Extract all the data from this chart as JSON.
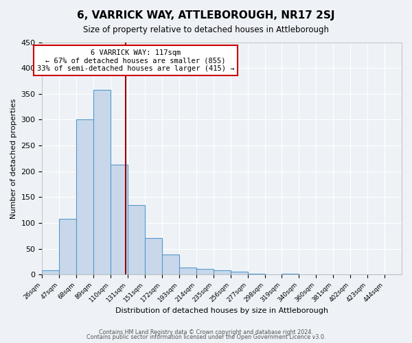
{
  "title": "6, VARRICK WAY, ATTLEBOROUGH, NR17 2SJ",
  "subtitle": "Size of property relative to detached houses in Attleborough",
  "xlabel": "Distribution of detached houses by size in Attleborough",
  "ylabel": "Number of detached properties",
  "bar_values": [
    8,
    108,
    300,
    358,
    213,
    135,
    70,
    39,
    14,
    11,
    8,
    5,
    2,
    0,
    2,
    0,
    0,
    0,
    0,
    0,
    0
  ],
  "bar_labels": [
    "26sqm",
    "47sqm",
    "68sqm",
    "89sqm",
    "110sqm",
    "131sqm",
    "151sqm",
    "172sqm",
    "193sqm",
    "214sqm",
    "235sqm",
    "256sqm",
    "277sqm",
    "298sqm",
    "319sqm",
    "340sqm",
    "360sqm",
    "381sqm",
    "402sqm",
    "423sqm",
    "444sqm"
  ],
  "bin_edges": [
    15,
    36,
    57,
    78,
    99,
    120,
    141,
    162,
    183,
    204,
    225,
    246,
    267,
    288,
    309,
    330,
    351,
    372,
    393,
    414,
    435,
    456
  ],
  "bar_color": "#c8d8ea",
  "bar_edge_color": "#5599cc",
  "vline_x": 117,
  "vline_color": "#990000",
  "annotation_text": "6 VARRICK WAY: 117sqm\n← 67% of detached houses are smaller (855)\n33% of semi-detached houses are larger (415) →",
  "annotation_box_color": "#ffffff",
  "annotation_box_edge": "#cc0000",
  "ylim": [
    0,
    450
  ],
  "yticks": [
    0,
    50,
    100,
    150,
    200,
    250,
    300,
    350,
    400,
    450
  ],
  "footer_line1": "Contains HM Land Registry data © Crown copyright and database right 2024.",
  "footer_line2": "Contains public sector information licensed under the Open Government Licence v3.0.",
  "bg_color": "#eef2f7",
  "plot_bg_color": "#eef2f7",
  "grid_color": "#ffffff"
}
